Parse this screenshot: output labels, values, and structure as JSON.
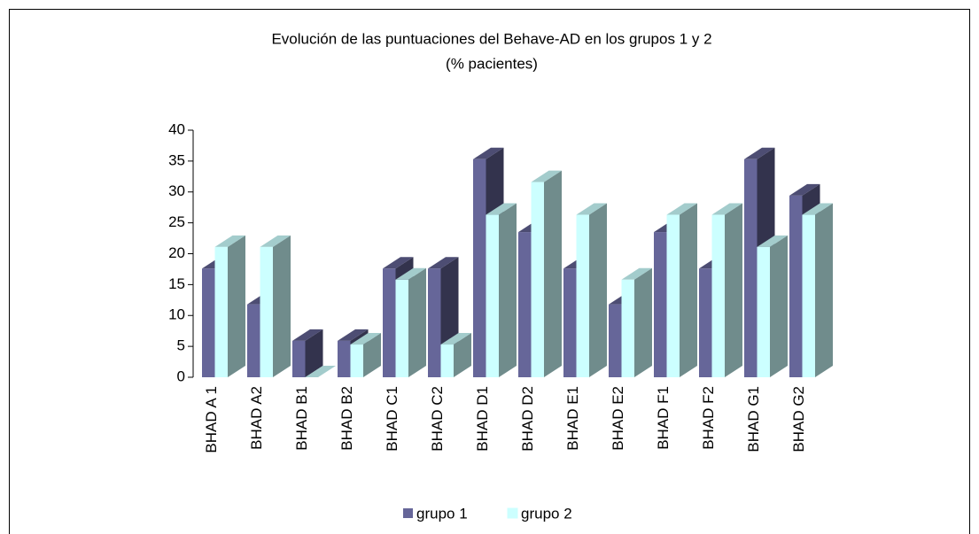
{
  "chart_data": {
    "type": "bar3d",
    "title": "Evolución de las puntuaciones del Behave-AD en los grupos 1 y 2",
    "subtitle": "(% pacientes)",
    "categories": [
      "BHAD A 1",
      "BHAD A2",
      "BHAD B1",
      "BHAD B2",
      "BHAD C1",
      "BHAD C2",
      "BHAD D1",
      "BHAD D2",
      "BHAD E1",
      "BHAD E2",
      "BHAD F1",
      "BHAD F2",
      "BHAD G1",
      "BHAD G2"
    ],
    "series": [
      {
        "name": "grupo 1",
        "color": "#666699",
        "values": [
          17.6,
          11.8,
          5.9,
          5.9,
          17.6,
          17.6,
          35.3,
          23.5,
          17.6,
          11.8,
          23.5,
          17.6,
          35.3,
          29.4
        ]
      },
      {
        "name": "grupo 2",
        "color": "#ccffff",
        "values": [
          21.1,
          21.1,
          0,
          5.3,
          15.8,
          5.3,
          26.3,
          31.6,
          26.3,
          15.8,
          26.3,
          26.3,
          21.1,
          26.3
        ]
      }
    ],
    "ylim": [
      0,
      40
    ],
    "yticks": [
      0,
      5,
      10,
      15,
      20,
      25,
      30,
      35,
      40
    ],
    "legend": "bottom"
  }
}
